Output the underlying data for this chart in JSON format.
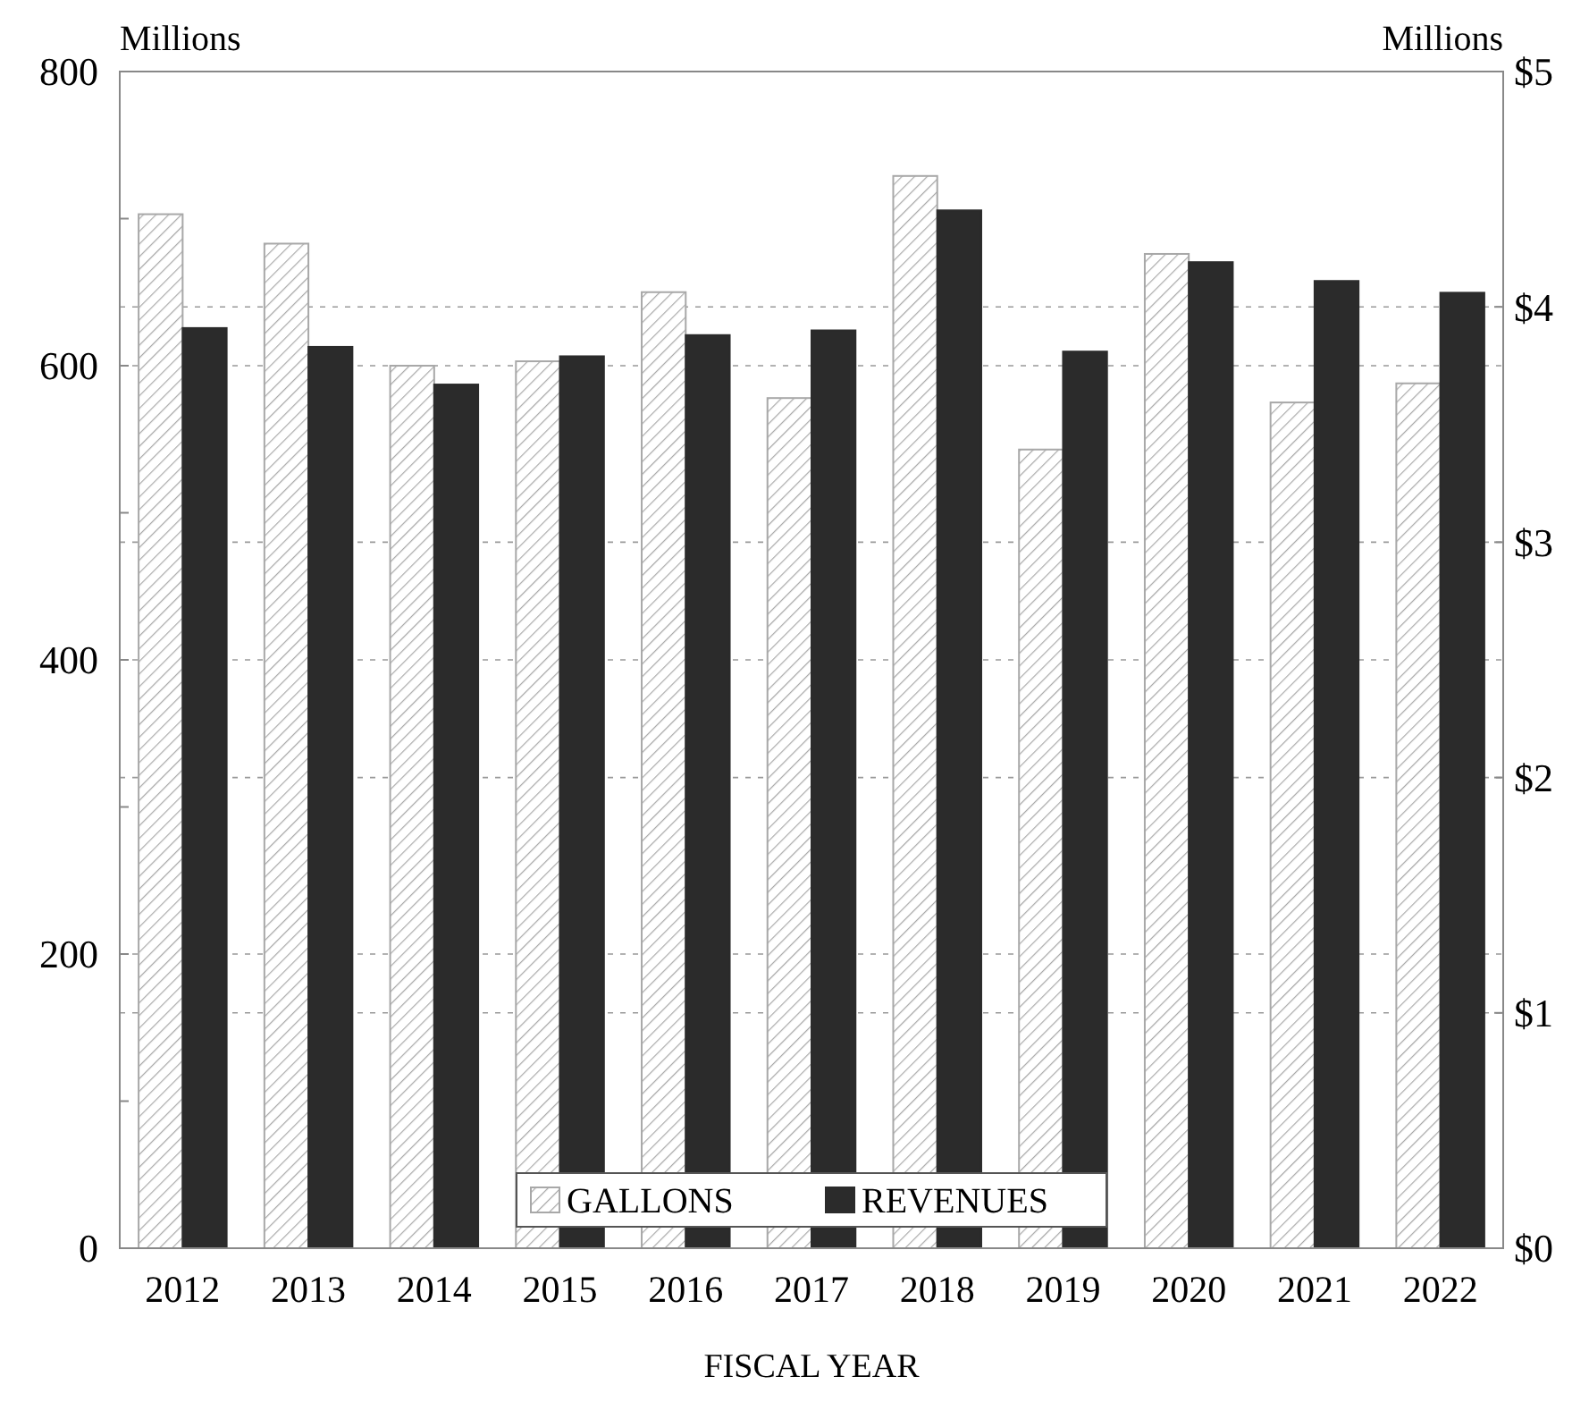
{
  "chart_data": {
    "type": "bar",
    "xlabel": "FISCAL YEAR",
    "ylabel": "Millions",
    "y2label": "Millions",
    "categories": [
      "2012",
      "2013",
      "2014",
      "2015",
      "2016",
      "2017",
      "2018",
      "2019",
      "2020",
      "2021",
      "2022"
    ],
    "series": [
      {
        "name": "GALLONS",
        "color": "#a8a8a8",
        "values": [
          703,
          683,
          600,
          603,
          650,
          578,
          729,
          543,
          676,
          575,
          588
        ]
      },
      {
        "name": "REVENUES",
        "color": "#2b2b2b",
        "axis": "y2",
        "values": [
          3.91,
          3.83,
          3.67,
          3.79,
          3.88,
          3.9,
          4.41,
          3.81,
          4.19,
          4.11,
          4.06
        ]
      }
    ],
    "ylim": [
      0,
      800
    ],
    "yticks": [
      0,
      {
        "value": 100,
        "label": null
      },
      200,
      {
        "value": 300,
        "label": null
      },
      400,
      {
        "value": 500,
        "label": null
      },
      600,
      {
        "value": 700,
        "label": null
      },
      800
    ],
    "y2lim": [
      0,
      5
    ],
    "y2ticks": [
      {
        "value": 0,
        "label": "$0"
      },
      {
        "value": 1,
        "label": "$1"
      },
      {
        "value": 2,
        "label": "$2"
      },
      {
        "value": 3,
        "label": "$3"
      },
      {
        "value": 4,
        "label": "$4"
      },
      {
        "value": 5,
        "label": "$5"
      }
    ],
    "grid": true,
    "legend": "bottom"
  }
}
